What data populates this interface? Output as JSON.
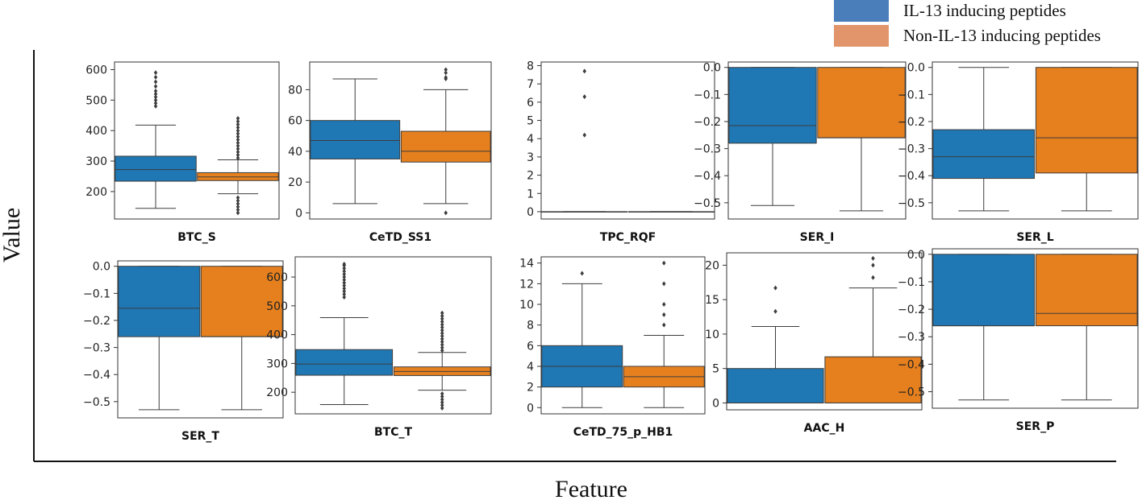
{
  "figure": {
    "ylabel": "Value",
    "xlabel": "Feature"
  },
  "legend": {
    "placement": "top-right",
    "items": [
      {
        "label": "IL-13 inducing peptides",
        "color": "#4a7ebb"
      },
      {
        "label": "Non-IL-13 inducing peptides",
        "color": "#e2956b"
      }
    ]
  },
  "colors": {
    "il13": "#1f77b4",
    "non_il13": "#e6801e"
  },
  "chart_data": [
    {
      "type": "box",
      "title": "BTC_S",
      "ylim": [
        110,
        625
      ],
      "yticks": [
        200,
        300,
        400,
        500,
        600
      ],
      "series": [
        {
          "name": "IL-13 inducing peptides",
          "q1": 234,
          "median": 272,
          "q3": 316,
          "whisker_low": 145,
          "whisker_high": 418,
          "outliers": [
            480,
            490,
            500,
            510,
            520,
            530,
            545,
            560,
            575,
            590
          ]
        },
        {
          "name": "Non-IL-13 inducing peptides",
          "q1": 236,
          "median": 248,
          "q3": 262,
          "whisker_low": 193,
          "whisker_high": 304,
          "outliers": [
            130,
            140,
            150,
            160,
            170,
            180,
            310,
            320,
            330,
            340,
            350,
            360,
            370,
            380,
            390,
            400,
            410,
            420,
            430,
            440
          ]
        }
      ]
    },
    {
      "type": "box",
      "title": "CeTD_SS1",
      "ylim": [
        -4,
        98
      ],
      "yticks": [
        0,
        20,
        40,
        60,
        80
      ],
      "series": [
        {
          "name": "IL-13 inducing peptides",
          "q1": 35,
          "median": 47,
          "q3": 60,
          "whisker_low": 6,
          "whisker_high": 87,
          "outliers": []
        },
        {
          "name": "Non-IL-13 inducing peptides",
          "q1": 33,
          "median": 40,
          "q3": 53,
          "whisker_low": 6,
          "whisker_high": 80,
          "outliers": [
            0,
            87,
            88,
            91,
            93
          ]
        }
      ]
    },
    {
      "type": "box",
      "title": "TPC_RQF",
      "ylim": [
        -0.4,
        8.2
      ],
      "yticks": [
        0,
        1,
        2,
        3,
        4,
        5,
        6,
        7,
        8
      ],
      "series": [
        {
          "name": "IL-13 inducing peptides",
          "q1": 0,
          "median": 0,
          "q3": 0,
          "whisker_low": 0,
          "whisker_high": 0,
          "outliers": [
            4.2,
            6.3,
            7.7
          ]
        },
        {
          "name": "Non-IL-13 inducing peptides",
          "q1": 0,
          "median": 0,
          "q3": 0,
          "whisker_low": 0,
          "whisker_high": 0,
          "outliers": []
        }
      ]
    },
    {
      "type": "box",
      "title": "SER_I",
      "ylim": [
        -0.56,
        0.02
      ],
      "yticks": [
        0.0,
        -0.1,
        -0.2,
        -0.3,
        -0.4,
        -0.5
      ],
      "series": [
        {
          "name": "IL-13 inducing peptides",
          "q1": -0.28,
          "median": -0.215,
          "q3": 0,
          "whisker_low": -0.51,
          "whisker_high": 0,
          "outliers": []
        },
        {
          "name": "Non-IL-13 inducing peptides",
          "q1": -0.26,
          "median": -0.26,
          "q3": 0,
          "whisker_low": -0.53,
          "whisker_high": 0,
          "outliers": []
        }
      ]
    },
    {
      "type": "box",
      "title": "SER_L",
      "ylim": [
        -0.56,
        0.02
      ],
      "yticks": [
        0.0,
        -0.1,
        -0.2,
        -0.3,
        -0.4,
        -0.5
      ],
      "series": [
        {
          "name": "IL-13 inducing peptides",
          "q1": -0.41,
          "median": -0.33,
          "q3": -0.23,
          "whisker_low": -0.53,
          "whisker_high": 0,
          "outliers": []
        },
        {
          "name": "Non-IL-13 inducing peptides",
          "q1": -0.39,
          "median": -0.26,
          "q3": 0,
          "whisker_low": -0.53,
          "whisker_high": 0,
          "outliers": []
        }
      ]
    },
    {
      "type": "box",
      "title": "SER_T",
      "ylim": [
        -0.56,
        0.02
      ],
      "yticks": [
        0.0,
        -0.1,
        -0.2,
        -0.3,
        -0.4,
        -0.5
      ],
      "series": [
        {
          "name": "IL-13 inducing peptides",
          "q1": -0.26,
          "median": -0.155,
          "q3": 0,
          "whisker_low": -0.53,
          "whisker_high": 0,
          "outliers": []
        },
        {
          "name": "Non-IL-13 inducing peptides",
          "q1": -0.26,
          "median": -0.26,
          "q3": 0,
          "whisker_low": -0.53,
          "whisker_high": 0,
          "outliers": []
        }
      ]
    },
    {
      "type": "box",
      "title": "BTC_T",
      "ylim": [
        125,
        670
      ],
      "yticks": [
        200,
        300,
        400,
        500,
        600
      ],
      "series": [
        {
          "name": "IL-13 inducing peptides",
          "q1": 259,
          "median": 298,
          "q3": 348,
          "whisker_low": 157,
          "whisker_high": 459,
          "outliers": [
            530,
            540,
            550,
            560,
            570,
            580,
            590,
            600,
            610,
            620,
            630,
            640,
            645
          ]
        },
        {
          "name": "Non-IL-13 inducing peptides",
          "q1": 258,
          "median": 272,
          "q3": 288,
          "whisker_low": 207,
          "whisker_high": 338,
          "outliers": [
            145,
            155,
            165,
            175,
            185,
            195,
            345,
            355,
            365,
            375,
            385,
            395,
            405,
            415,
            425,
            435,
            445,
            455,
            465,
            475
          ]
        }
      ]
    },
    {
      "type": "box",
      "title": "CeTD_75_p_HB1",
      "ylim": [
        -0.6,
        14.6
      ],
      "yticks": [
        0,
        2,
        4,
        6,
        8,
        10,
        12,
        14
      ],
      "series": [
        {
          "name": "IL-13 inducing peptides",
          "q1": 2,
          "median": 4,
          "q3": 6,
          "whisker_low": 0,
          "whisker_high": 12,
          "outliers": [
            13
          ]
        },
        {
          "name": "Non-IL-13 inducing peptides",
          "q1": 2,
          "median": 3,
          "q3": 4,
          "whisker_low": 0,
          "whisker_high": 7,
          "outliers": [
            8,
            9,
            10,
            12,
            14
          ]
        }
      ]
    },
    {
      "type": "box",
      "title": "AAC_H",
      "ylim": [
        -1,
        21.8
      ],
      "yticks": [
        0,
        5,
        10,
        15,
        20
      ],
      "series": [
        {
          "name": "IL-13 inducing peptides",
          "q1": 0,
          "median": 0,
          "q3": 5,
          "whisker_low": 0,
          "whisker_high": 11.1,
          "outliers": [
            13.3,
            16.7
          ]
        },
        {
          "name": "Non-IL-13 inducing peptides",
          "q1": 0,
          "median": 0,
          "q3": 6.7,
          "whisker_low": 0,
          "whisker_high": 16.7,
          "outliers": [
            18.2,
            20,
            21
          ]
        }
      ]
    },
    {
      "type": "box",
      "title": "SER_P",
      "ylim": [
        -0.56,
        0.02
      ],
      "yticks": [
        0.0,
        -0.1,
        -0.2,
        -0.3,
        -0.4,
        -0.5
      ],
      "series": [
        {
          "name": "IL-13 inducing peptides",
          "q1": -0.26,
          "median": -0.26,
          "q3": 0,
          "whisker_low": -0.53,
          "whisker_high": 0,
          "outliers": []
        },
        {
          "name": "Non-IL-13 inducing peptides",
          "q1": -0.26,
          "median": -0.215,
          "q3": 0,
          "whisker_low": -0.53,
          "whisker_high": 0,
          "outliers": []
        }
      ]
    }
  ]
}
